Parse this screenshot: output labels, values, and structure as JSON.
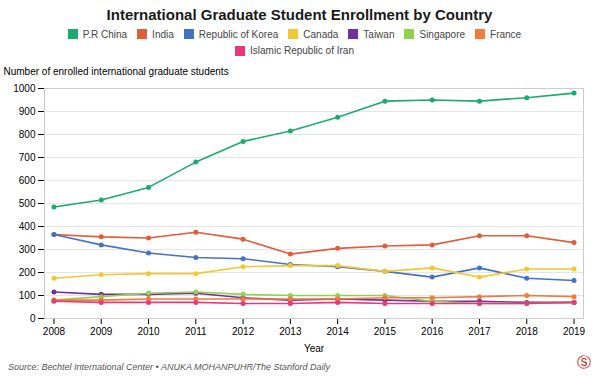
{
  "chart_data": {
    "type": "line",
    "title": "International Graduate Student Enrollment by Country",
    "xlabel": "Year",
    "ylabel": "Number of enrolled international graduate students",
    "x": [
      2008,
      2009,
      2010,
      2011,
      2012,
      2013,
      2014,
      2015,
      2016,
      2017,
      2018,
      2019
    ],
    "series": [
      {
        "name": "P.R China",
        "color": "#1aab6d",
        "values": [
          485,
          515,
          570,
          680,
          770,
          815,
          875,
          945,
          950,
          945,
          960,
          980
        ]
      },
      {
        "name": "India",
        "color": "#e05c3a",
        "values": [
          365,
          355,
          350,
          375,
          345,
          280,
          305,
          315,
          320,
          360,
          360,
          330
        ]
      },
      {
        "name": "Republic of Korea",
        "color": "#4472c4",
        "values": [
          365,
          320,
          285,
          265,
          260,
          235,
          225,
          205,
          180,
          220,
          175,
          165
        ]
      },
      {
        "name": "Canada",
        "color": "#f0c832",
        "values": [
          175,
          190,
          195,
          195,
          225,
          230,
          230,
          205,
          220,
          180,
          215,
          215
        ]
      },
      {
        "name": "Taiwan",
        "color": "#7030a0",
        "values": [
          115,
          105,
          105,
          110,
          90,
          80,
          85,
          80,
          75,
          75,
          70,
          70
        ]
      },
      {
        "name": "Singapore",
        "color": "#92d050",
        "values": [
          80,
          95,
          110,
          115,
          105,
          100,
          100,
          100,
          75,
          65,
          65,
          70
        ]
      },
      {
        "name": "France",
        "color": "#f4793b",
        "values": [
          80,
          80,
          85,
          85,
          85,
          85,
          85,
          90,
          90,
          95,
          100,
          95
        ]
      },
      {
        "name": "Islamic Republic of Iran",
        "color": "#e8397d",
        "values": [
          75,
          70,
          70,
          70,
          65,
          65,
          70,
          65,
          65,
          65,
          65,
          70
        ]
      }
    ],
    "xlim": [
      2007.8,
      2019.2
    ],
    "xticks": [
      2008,
      2009,
      2010,
      2011,
      2012,
      2013,
      2014,
      2015,
      2016,
      2017,
      2018,
      2019
    ],
    "ylim": [
      0,
      1000
    ],
    "yticks": [
      0,
      100,
      200,
      300,
      400,
      500,
      600,
      700,
      800,
      900,
      1000
    ],
    "grid": true,
    "legend": "top",
    "marker": "circle",
    "line_style": "solid",
    "annotations": [
      "Source: Bechtel International Center • ANUKA MOHANPUHR/The Stanford Daily",
      "Ⓢ"
    ]
  }
}
